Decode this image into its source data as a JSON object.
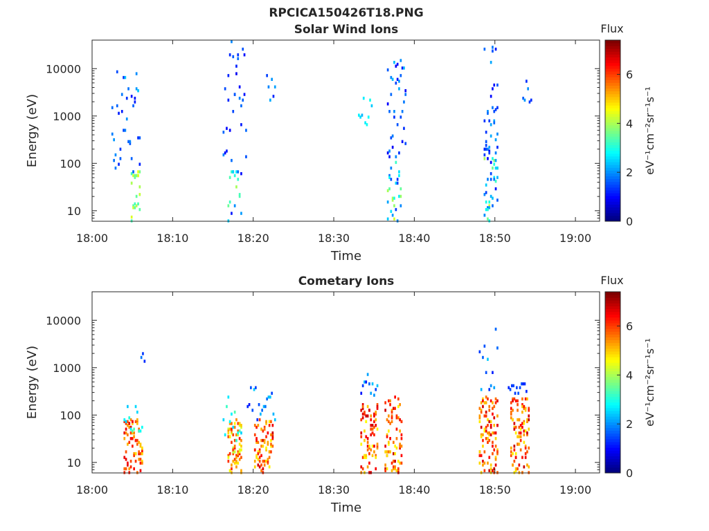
{
  "figure": {
    "title_line1": "RPCICA150426T18.PNG"
  },
  "colormap": [
    "#00007f",
    "#0000ff",
    "#007fff",
    "#00ffff",
    "#7fff7f",
    "#ffff00",
    "#ff7f00",
    "#ff0000",
    "#7f0000"
  ],
  "chart_data": [
    {
      "type": "heatmap",
      "title": "Solar Wind Ions",
      "xlabel": "Time",
      "ylabel": "Energy (eV)",
      "x_ticks": [
        "18:00",
        "18:10",
        "18:20",
        "18:30",
        "18:40",
        "18:50",
        "19:00"
      ],
      "xlim_minutes": [
        0,
        63
      ],
      "y_scale": "log",
      "ylim": [
        6,
        40000
      ],
      "y_ticks": [
        10,
        100,
        1000,
        10000
      ],
      "y_tick_labels": [
        "10",
        "100",
        "1000",
        "10000"
      ],
      "colorbar": {
        "title": "Flux",
        "label": "eV⁻¹cm⁻²sr⁻¹s⁻¹",
        "range": [
          0,
          7.4
        ],
        "ticks": [
          0,
          2,
          4,
          6
        ],
        "tick_labels": [
          "0",
          "2",
          "4",
          "6"
        ]
      },
      "bursts": [
        {
          "t": [
            18.08,
            18.1
          ],
          "e": [
            6,
            70
          ],
          "flux": [
            3.2,
            4.6
          ],
          "cells": 22
        },
        {
          "t": [
            18.04,
            18.1
          ],
          "e": [
            60,
            12000
          ],
          "flux": [
            1.0,
            2.4
          ],
          "cells": 40
        },
        {
          "t": [
            18.28,
            18.31
          ],
          "e": [
            6,
            90
          ],
          "flux": [
            1.0,
            4.2
          ],
          "cells": 22
        },
        {
          "t": [
            18.27,
            18.32
          ],
          "e": [
            100,
            40000
          ],
          "flux": [
            0.8,
            2.0
          ],
          "cells": 30
        },
        {
          "t": [
            18.36,
            18.38
          ],
          "e": [
            2000,
            9000
          ],
          "flux": [
            1.2,
            2.2
          ],
          "cells": 4
        },
        {
          "t": [
            18.61,
            18.64
          ],
          "e": [
            6,
            120
          ],
          "flux": [
            1.2,
            4.5
          ],
          "cells": 30
        },
        {
          "t": [
            18.61,
            18.65
          ],
          "e": [
            120,
            20000
          ],
          "flux": [
            0.8,
            2.3
          ],
          "cells": 34
        },
        {
          "t": [
            18.55,
            18.58
          ],
          "e": [
            600,
            2500
          ],
          "flux": [
            2.2,
            3.0
          ],
          "cells": 4
        },
        {
          "t": [
            18.81,
            18.84
          ],
          "e": [
            6,
            130
          ],
          "flux": [
            0.8,
            4.5
          ],
          "cells": 38
        },
        {
          "t": [
            18.81,
            18.84
          ],
          "e": [
            130,
            33000
          ],
          "flux": [
            0.8,
            2.2
          ],
          "cells": 36
        },
        {
          "t": [
            18.89,
            18.91
          ],
          "e": [
            1500,
            6000
          ],
          "flux": [
            1.0,
            2.2
          ],
          "cells": 4
        }
      ]
    },
    {
      "type": "heatmap",
      "title": "Cometary Ions",
      "xlabel": "Time",
      "ylabel": "Energy (eV)",
      "x_ticks": [
        "18:00",
        "18:10",
        "18:20",
        "18:30",
        "18:40",
        "18:50",
        "19:00"
      ],
      "xlim_minutes": [
        0,
        63
      ],
      "y_scale": "log",
      "ylim": [
        6,
        40000
      ],
      "y_ticks": [
        10,
        100,
        1000,
        10000
      ],
      "y_tick_labels": [
        "10",
        "100",
        "1000",
        "10000"
      ],
      "colorbar": {
        "title": "Flux",
        "label": "eV⁻¹cm⁻²sr⁻¹s⁻¹",
        "range": [
          0,
          7.4
        ],
        "ticks": [
          0,
          2,
          4,
          6
        ],
        "tick_labels": [
          "0",
          "2",
          "4",
          "6"
        ]
      },
      "bursts": [
        {
          "t": [
            18.065,
            18.105
          ],
          "e": [
            6,
            85
          ],
          "flux": [
            4.8,
            6.8
          ],
          "cells": 70
        },
        {
          "t": [
            18.065,
            18.105
          ],
          "e": [
            40,
            160
          ],
          "flux": [
            2.2,
            3.6
          ],
          "cells": 12
        },
        {
          "t": [
            18.1,
            18.11
          ],
          "e": [
            500,
            3000
          ],
          "flux": [
            1.2,
            2.0
          ],
          "cells": 2
        },
        {
          "t": [
            18.28,
            18.31
          ],
          "e": [
            6,
            85
          ],
          "flux": [
            4.2,
            6.4
          ],
          "cells": 70
        },
        {
          "t": [
            18.27,
            18.31
          ],
          "e": [
            30,
            250
          ],
          "flux": [
            2.2,
            3.4
          ],
          "cells": 10
        },
        {
          "t": [
            18.335,
            18.375
          ],
          "e": [
            6,
            85
          ],
          "flux": [
            4.6,
            6.8
          ],
          "cells": 70
        },
        {
          "t": [
            18.32,
            18.38
          ],
          "e": [
            80,
            400
          ],
          "flux": [
            1.0,
            2.4
          ],
          "cells": 6
        },
        {
          "t": [
            18.555,
            18.59
          ],
          "e": [
            6,
            180
          ],
          "flux": [
            4.6,
            6.9
          ],
          "cells": 80
        },
        {
          "t": [
            18.555,
            18.59
          ],
          "e": [
            180,
            900
          ],
          "flux": [
            1.0,
            2.4
          ],
          "cells": 4
        },
        {
          "t": [
            18.605,
            18.64
          ],
          "e": [
            6,
            250
          ],
          "flux": [
            4.6,
            6.9
          ],
          "cells": 80
        },
        {
          "t": [
            18.8,
            18.84
          ],
          "e": [
            6,
            250
          ],
          "flux": [
            4.6,
            6.9
          ],
          "cells": 90
        },
        {
          "t": [
            18.8,
            18.84
          ],
          "e": [
            250,
            8000
          ],
          "flux": [
            1.0,
            2.6
          ],
          "cells": 6
        },
        {
          "t": [
            18.865,
            18.905
          ],
          "e": [
            6,
            250
          ],
          "flux": [
            4.6,
            6.9
          ],
          "cells": 90
        },
        {
          "t": [
            18.86,
            18.9
          ],
          "e": [
            250,
            500
          ],
          "flux": [
            0.8,
            1.6
          ],
          "cells": 3
        }
      ]
    }
  ]
}
